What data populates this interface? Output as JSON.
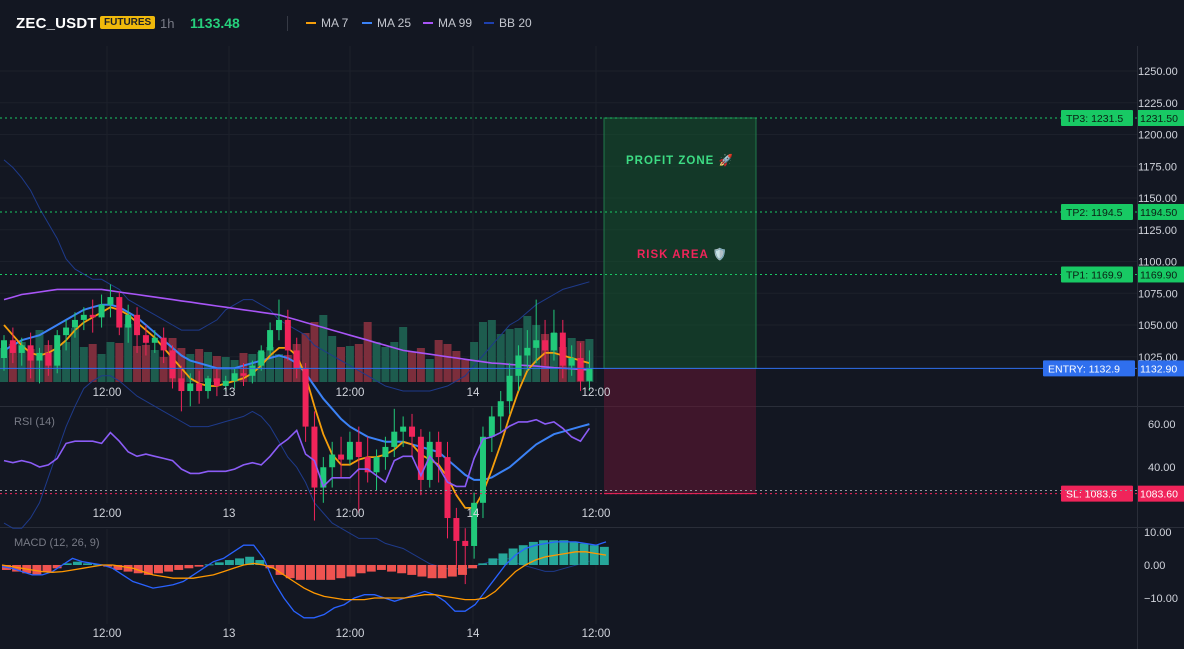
{
  "header": {
    "symbol": "ZEC_USDT",
    "badge": "FUTURES",
    "timeframe": "1h",
    "price": "1133.48",
    "legend": [
      {
        "label": "MA 7",
        "color": "#f59e0b"
      },
      {
        "label": "MA 25",
        "color": "#3b82f6"
      },
      {
        "label": "MA 99",
        "color": "#a855f7"
      },
      {
        "label": "BB 20",
        "color": "#1e40af"
      }
    ]
  },
  "colors": {
    "up": "#21c97a",
    "down": "#f0245a",
    "tp": "#18c964",
    "entry": "#2f6fee",
    "sl": "#f0245a"
  },
  "levels": [
    {
      "id": "tp3",
      "tag": "TP3: 1231.5",
      "value": 1231.5,
      "price_label": "1231.50"
    },
    {
      "id": "tp2",
      "tag": "TP2: 1194.5",
      "value": 1194.5,
      "price_label": "1194.50"
    },
    {
      "id": "tp1",
      "tag": "TP1: 1169.9",
      "value": 1169.9,
      "price_label": "1169.90"
    },
    {
      "id": "entry",
      "tag": "ENTRY: 1132.9",
      "value": 1132.9,
      "price_label": "1132.90"
    },
    {
      "id": "sl",
      "tag": "SL: 1083.6",
      "value": 1083.6,
      "price_label": "1083.60"
    }
  ],
  "zones": {
    "profit": "PROFIT ZONE 🚀",
    "risk": "RISK AREA 🛡️"
  },
  "price_ticks": [
    "1250.00",
    "1225.00",
    "1200.00",
    "1175.00",
    "1150.00",
    "1125.00",
    "1100.00",
    "1075.00",
    "1050.00",
    "1025.00"
  ],
  "rsi": {
    "label": "RSI (14)",
    "ticks": [
      "60.00",
      "40.00"
    ]
  },
  "macd": {
    "label": "MACD (12, 26, 9)",
    "ticks": [
      "10.00",
      "0.00",
      "−10.00"
    ]
  },
  "x_labels": [
    "12:00",
    "13",
    "12:00",
    "14",
    "12:00"
  ],
  "chart_data": {
    "type": "candlestick",
    "symbol": "ZEC_USDT",
    "interval": "1h",
    "candles": [
      {
        "o": 1137,
        "h": 1146,
        "c": 1144,
        "l": 1132
      },
      {
        "o": 1144,
        "h": 1149,
        "c": 1139,
        "l": 1135
      },
      {
        "o": 1139,
        "h": 1145,
        "c": 1142,
        "l": 1134
      },
      {
        "o": 1142,
        "h": 1147,
        "c": 1136,
        "l": 1129
      },
      {
        "o": 1136,
        "h": 1141,
        "c": 1139,
        "l": 1127
      },
      {
        "o": 1139,
        "h": 1144,
        "c": 1134,
        "l": 1130
      },
      {
        "o": 1134,
        "h": 1148,
        "c": 1146,
        "l": 1131
      },
      {
        "o": 1146,
        "h": 1152,
        "c": 1149,
        "l": 1140
      },
      {
        "o": 1149,
        "h": 1155,
        "c": 1152,
        "l": 1145
      },
      {
        "o": 1152,
        "h": 1157,
        "c": 1154,
        "l": 1148
      },
      {
        "o": 1154,
        "h": 1160,
        "c": 1153,
        "l": 1147
      },
      {
        "o": 1153,
        "h": 1162,
        "c": 1158,
        "l": 1149
      },
      {
        "o": 1158,
        "h": 1166,
        "c": 1161,
        "l": 1153
      },
      {
        "o": 1161,
        "h": 1163,
        "c": 1149,
        "l": 1146
      },
      {
        "o": 1149,
        "h": 1158,
        "c": 1154,
        "l": 1143
      },
      {
        "o": 1154,
        "h": 1157,
        "c": 1146,
        "l": 1139
      },
      {
        "o": 1146,
        "h": 1150,
        "c": 1143,
        "l": 1138
      },
      {
        "o": 1143,
        "h": 1148,
        "c": 1145,
        "l": 1139
      },
      {
        "o": 1145,
        "h": 1149,
        "c": 1140,
        "l": 1135
      },
      {
        "o": 1140,
        "h": 1142,
        "c": 1129,
        "l": 1125
      },
      {
        "o": 1129,
        "h": 1134,
        "c": 1124,
        "l": 1116
      },
      {
        "o": 1124,
        "h": 1131,
        "c": 1127,
        "l": 1118
      },
      {
        "o": 1127,
        "h": 1132,
        "c": 1124,
        "l": 1119
      },
      {
        "o": 1124,
        "h": 1130,
        "c": 1129,
        "l": 1121
      },
      {
        "o": 1129,
        "h": 1133,
        "c": 1126,
        "l": 1122
      },
      {
        "o": 1126,
        "h": 1130,
        "c": 1128,
        "l": 1124
      },
      {
        "o": 1128,
        "h": 1133,
        "c": 1131,
        "l": 1125
      },
      {
        "o": 1131,
        "h": 1135,
        "c": 1130,
        "l": 1126
      },
      {
        "o": 1130,
        "h": 1136,
        "c": 1134,
        "l": 1127
      },
      {
        "o": 1134,
        "h": 1142,
        "c": 1140,
        "l": 1132
      },
      {
        "o": 1140,
        "h": 1151,
        "c": 1148,
        "l": 1138
      },
      {
        "o": 1148,
        "h": 1160,
        "c": 1152,
        "l": 1144
      },
      {
        "o": 1152,
        "h": 1156,
        "c": 1140,
        "l": 1136
      },
      {
        "o": 1140,
        "h": 1145,
        "c": 1133,
        "l": 1129
      },
      {
        "o": 1133,
        "h": 1135,
        "c": 1110,
        "l": 1104
      },
      {
        "o": 1110,
        "h": 1116,
        "c": 1086,
        "l": 1073
      },
      {
        "o": 1086,
        "h": 1098,
        "c": 1094,
        "l": 1080
      },
      {
        "o": 1094,
        "h": 1104,
        "c": 1099,
        "l": 1086
      },
      {
        "o": 1099,
        "h": 1106,
        "c": 1097,
        "l": 1090
      },
      {
        "o": 1097,
        "h": 1108,
        "c": 1104,
        "l": 1095
      },
      {
        "o": 1104,
        "h": 1110,
        "c": 1098,
        "l": 1076
      },
      {
        "o": 1098,
        "h": 1106,
        "c": 1092,
        "l": 1088
      },
      {
        "o": 1092,
        "h": 1101,
        "c": 1098,
        "l": 1085
      },
      {
        "o": 1098,
        "h": 1106,
        "c": 1102,
        "l": 1093
      },
      {
        "o": 1102,
        "h": 1117,
        "c": 1108,
        "l": 1098
      },
      {
        "o": 1108,
        "h": 1114,
        "c": 1110,
        "l": 1102
      },
      {
        "o": 1110,
        "h": 1115,
        "c": 1106,
        "l": 1098
      },
      {
        "o": 1106,
        "h": 1109,
        "c": 1089,
        "l": 1083
      },
      {
        "o": 1089,
        "h": 1108,
        "c": 1104,
        "l": 1086
      },
      {
        "o": 1104,
        "h": 1108,
        "c": 1098,
        "l": 1088
      },
      {
        "o": 1098,
        "h": 1104,
        "c": 1074,
        "l": 1066
      },
      {
        "o": 1074,
        "h": 1078,
        "c": 1065,
        "l": 1055
      },
      {
        "o": 1065,
        "h": 1070,
        "c": 1063,
        "l": 1048
      },
      {
        "o": 1063,
        "h": 1084,
        "c": 1080,
        "l": 1058
      },
      {
        "o": 1080,
        "h": 1110,
        "c": 1106,
        "l": 1074
      },
      {
        "o": 1106,
        "h": 1118,
        "c": 1114,
        "l": 1100
      },
      {
        "o": 1114,
        "h": 1124,
        "c": 1120,
        "l": 1108
      },
      {
        "o": 1120,
        "h": 1135,
        "c": 1130,
        "l": 1115
      },
      {
        "o": 1130,
        "h": 1142,
        "c": 1138,
        "l": 1124
      },
      {
        "o": 1138,
        "h": 1148,
        "c": 1141,
        "l": 1132
      },
      {
        "o": 1141,
        "h": 1160,
        "c": 1144,
        "l": 1135
      },
      {
        "o": 1144,
        "h": 1152,
        "c": 1140,
        "l": 1134
      },
      {
        "o": 1140,
        "h": 1156,
        "c": 1147,
        "l": 1136
      },
      {
        "o": 1147,
        "h": 1152,
        "c": 1134,
        "l": 1129
      },
      {
        "o": 1134,
        "h": 1142,
        "c": 1137,
        "l": 1130
      },
      {
        "o": 1137,
        "h": 1143,
        "c": 1128,
        "l": 1124
      },
      {
        "o": 1128,
        "h": 1140,
        "c": 1133,
        "l": 1124
      }
    ],
    "volume": [
      34,
      38,
      40,
      33,
      52,
      37,
      32,
      40,
      54,
      35,
      38,
      28,
      40,
      39,
      58,
      36,
      37,
      32,
      25,
      44,
      34,
      28,
      33,
      30,
      26,
      25,
      22,
      29,
      28,
      30,
      35,
      28,
      27,
      38,
      49,
      60,
      67,
      46,
      35,
      36,
      38,
      60,
      40,
      35,
      40,
      55,
      30,
      34,
      23,
      42,
      38,
      31,
      22,
      40,
      60,
      62,
      48,
      53,
      54,
      66,
      57,
      48,
      49,
      35,
      44,
      41,
      43
    ],
    "volume_color_by_candle": true,
    "ma": {
      "MA 7": "orange",
      "MA 25": "blue",
      "MA 99": "purple",
      "BB 20": "dark blue"
    },
    "y_axis_range": [
      1010,
      1262
    ],
    "rsi_values": [
      43,
      42,
      43,
      42,
      40,
      41,
      44,
      51,
      52,
      52,
      52,
      51,
      56,
      52,
      47,
      45,
      46,
      45,
      44,
      43,
      39,
      37,
      37,
      38,
      38,
      38,
      39,
      41,
      42,
      41,
      45,
      50,
      53,
      57,
      46,
      43,
      31,
      35,
      35,
      35,
      39,
      39,
      36,
      33,
      43,
      45,
      45,
      36,
      45,
      40,
      33,
      31,
      31,
      44,
      53,
      54,
      56,
      59,
      61,
      61,
      62,
      60,
      61,
      58,
      54,
      52,
      58
    ],
    "macd_hist": [
      -1.5,
      -2,
      -2.5,
      -3,
      -2,
      -1,
      0.5,
      1,
      0.5,
      0.2,
      -0.5,
      -1.5,
      -2,
      -2.5,
      -3,
      -2.5,
      -2,
      -1.5,
      -1,
      -0.5,
      0.2,
      0.8,
      1.5,
      2,
      2.5,
      1.5,
      -1,
      -3,
      -4,
      -4.5,
      -4.5,
      -4.5,
      -4.5,
      -4,
      -3.5,
      -2.5,
      -2,
      -1.5,
      -2,
      -2.5,
      -3,
      -3.5,
      -4,
      -4,
      -3.5,
      -3,
      -1,
      0.5,
      2,
      3.5,
      5,
      6,
      7,
      7.5,
      7.5,
      7.5,
      7,
      6.5,
      6,
      5.5
    ],
    "macd_line": [
      -0.5,
      -1,
      -2,
      -3,
      -3,
      -2,
      0,
      2,
      1,
      0.5,
      0,
      -1,
      -3,
      -5,
      -6,
      -7,
      -6.5,
      -6,
      -5,
      -3,
      -1,
      1,
      2,
      4,
      6,
      6,
      2,
      -5,
      -10,
      -14,
      -16,
      -16,
      -15,
      -13,
      -12,
      -10,
      -9,
      -9,
      -10,
      -11,
      -10,
      -9,
      -8,
      -9,
      -11,
      -14,
      -14,
      -12,
      -8,
      -4,
      0,
      3,
      5,
      6,
      6.5,
      7,
      7,
      7,
      6.5,
      6,
      7
    ],
    "signal_line": [
      0,
      -0.5,
      -1,
      -1.5,
      -2,
      -2.2,
      -2,
      -1.5,
      -1,
      -0.5,
      0,
      0,
      -0.5,
      -1,
      -2,
      -3,
      -3.5,
      -4,
      -4,
      -4,
      -3.5,
      -3,
      -2,
      -1,
      0,
      0.5,
      0,
      -1,
      -3,
      -5,
      -7,
      -8.5,
      -9.5,
      -10,
      -10.5,
      -10.5,
      -10.5,
      -10,
      -10,
      -10,
      -10,
      -9.5,
      -9,
      -9,
      -9.5,
      -10,
      -10.5,
      -10.5,
      -10,
      -8,
      -5,
      -2,
      0,
      1.5,
      2.5,
      3,
      3.5,
      4,
      4,
      3.5,
      3
    ]
  }
}
